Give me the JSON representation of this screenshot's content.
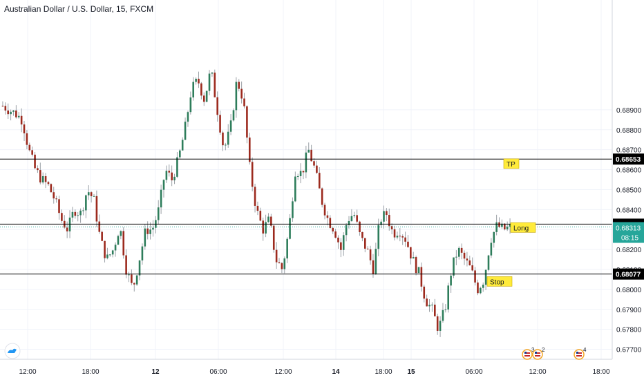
{
  "header": {
    "symbol_title": "Australian Dollar / U.S. Dollar, 15, FXCM"
  },
  "colors": {
    "up": "#2e7d5b",
    "down": "#9c2a1e",
    "wick": "#9aa0a6",
    "line": "#000000",
    "label_bg": "#ffeb3b",
    "price_tag_bg": "#26a69a"
  },
  "icons": {
    "logo": "tradingview-cloud-icon",
    "events": "us-flag-event-icon"
  },
  "chart_data": {
    "type": "candlestick",
    "title": "Australian Dollar / U.S. Dollar, 15, FXCM",
    "y_axis": {
      "position": "right",
      "ylim": [
        0.6765,
        0.6945
      ],
      "ticks": [
        "0.68900",
        "0.68800",
        "0.68700",
        "0.68600",
        "0.68500",
        "0.68400",
        "0.68300",
        "0.68200",
        "0.68100",
        "0.68000",
        "0.67900",
        "0.67800",
        "0.67700"
      ]
    },
    "x_axis": {
      "tick_labels": [
        "12:00",
        "18:00",
        "12",
        "06:00",
        "12:00",
        "14",
        "18:00",
        "15",
        "06:00",
        "12:00",
        "18:00"
      ]
    },
    "horizontal_levels": [
      {
        "label": "0.68653",
        "value": 0.68653
      },
      {
        "label": "0.68327",
        "value": 0.68327
      },
      {
        "label": "0.68077",
        "value": 0.68077
      }
    ],
    "current_price": {
      "value": "0.68313",
      "countdown": "08:15"
    },
    "annotations": [
      {
        "text": "TP",
        "price": 0.6863
      },
      {
        "text": "Long",
        "price": 0.6831
      },
      {
        "text": "Stop",
        "price": 0.6804
      }
    ],
    "events": [
      {
        "count": "3"
      },
      {
        "count": "2"
      },
      {
        "count": "4"
      }
    ],
    "price_path": [
      0.6892,
      0.689,
      0.6888,
      0.6885,
      0.687,
      0.686,
      0.6855,
      0.6852,
      0.6845,
      0.6835,
      0.683,
      0.684,
      0.6838,
      0.685,
      0.6845,
      0.6825,
      0.6815,
      0.682,
      0.6832,
      0.681,
      0.68,
      0.6815,
      0.683,
      0.683,
      0.684,
      0.686,
      0.6855,
      0.6865,
      0.688,
      0.69,
      0.6905,
      0.6895,
      0.691,
      0.689,
      0.687,
      0.688,
      0.6905,
      0.6895,
      0.686,
      0.684,
      0.683,
      0.6835,
      0.6815,
      0.681,
      0.683,
      0.686,
      0.6858,
      0.687,
      0.686,
      0.6845,
      0.6835,
      0.683,
      0.682,
      0.6835,
      0.6838,
      0.6826,
      0.682,
      0.681,
      0.6835,
      0.6838,
      0.6828,
      0.683,
      0.6825,
      0.6815,
      0.6808,
      0.6795,
      0.679,
      0.678,
      0.679,
      0.681,
      0.682,
      0.6815,
      0.681,
      0.68,
      0.6805,
      0.6825,
      0.6832,
      0.683,
      0.6831
    ]
  }
}
